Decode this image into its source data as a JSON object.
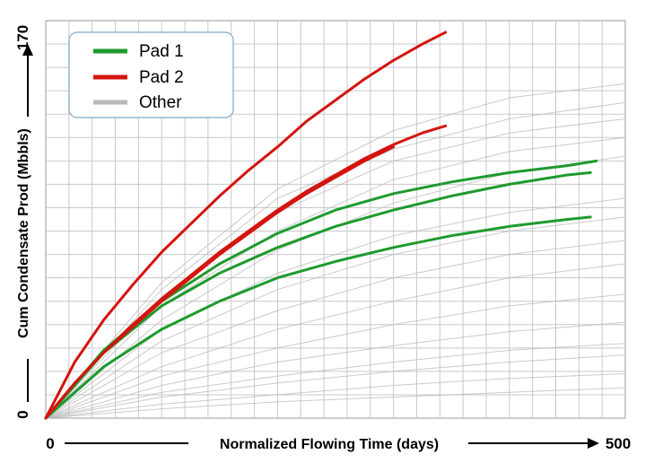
{
  "chart_data": {
    "type": "line",
    "xlabel": "Normalized Flowing Time (days)",
    "ylabel": "Cum Condensate Prod (Mbbls)",
    "xlim": [
      0,
      500
    ],
    "ylim": [
      0,
      170
    ],
    "x_tick_labels": [
      "0",
      "500"
    ],
    "y_tick_labels": [
      "0",
      "170"
    ],
    "grid": true,
    "legend_position": "top-left",
    "legend": [
      {
        "label": "Pad 1",
        "color": "#1e9a2e"
      },
      {
        "label": "Pad 2",
        "color": "#d4140f"
      },
      {
        "label": "Other",
        "color": "#b8b8b8"
      }
    ],
    "series": [
      {
        "name": "Pad 2",
        "group": "Pad 2",
        "x": [
          0,
          25,
          50,
          75,
          100,
          125,
          150,
          175,
          200,
          225,
          250,
          275,
          300,
          325,
          345
        ],
        "y": [
          0,
          24,
          42,
          57,
          71,
          83,
          95,
          106,
          116,
          127,
          136,
          145,
          153,
          160,
          165
        ]
      },
      {
        "name": "Pad 2",
        "group": "Pad 2",
        "x": [
          0,
          25,
          50,
          75,
          100,
          125,
          150,
          175,
          200,
          225,
          250,
          275,
          300,
          325,
          345
        ],
        "y": [
          0,
          15,
          28,
          40,
          51,
          61,
          71,
          80,
          89,
          97,
          104,
          111,
          117,
          122,
          125
        ]
      },
      {
        "name": "Pad 2",
        "group": "Pad 2",
        "x": [
          0,
          25,
          50,
          75,
          100,
          125,
          150,
          175,
          200,
          225,
          250,
          275,
          300
        ],
        "y": [
          0,
          15,
          28,
          39,
          50,
          60,
          70,
          79,
          88,
          96,
          103,
          110,
          116
        ]
      },
      {
        "name": "Pad 1",
        "group": "Pad 1",
        "x": [
          0,
          50,
          100,
          150,
          200,
          250,
          300,
          350,
          400,
          450,
          475
        ],
        "y": [
          0,
          29,
          50,
          66,
          79,
          89,
          96,
          101,
          105,
          108,
          110
        ]
      },
      {
        "name": "Pad 1",
        "group": "Pad 1",
        "x": [
          0,
          50,
          100,
          150,
          200,
          250,
          300,
          350,
          400,
          450,
          470
        ],
        "y": [
          0,
          28,
          48,
          62,
          73,
          82,
          89,
          95,
          100,
          104,
          105
        ]
      },
      {
        "name": "Pad 1",
        "group": "Pad 1",
        "x": [
          0,
          50,
          100,
          150,
          200,
          250,
          300,
          350,
          400,
          450,
          470
        ],
        "y": [
          0,
          22,
          38,
          50,
          60,
          67,
          73,
          78,
          82,
          85,
          86
        ]
      },
      {
        "name": "Other",
        "group": "Other",
        "x": [
          0,
          100,
          200,
          300,
          400,
          500
        ],
        "y": [
          0,
          58,
          98,
          123,
          137,
          143
        ]
      },
      {
        "name": "Other",
        "group": "Other",
        "x": [
          0,
          100,
          200,
          300,
          400,
          500
        ],
        "y": [
          0,
          55,
          94,
          115,
          128,
          135
        ]
      },
      {
        "name": "Other",
        "group": "Other",
        "x": [
          0,
          100,
          200,
          300,
          400,
          500
        ],
        "y": [
          0,
          52,
          88,
          110,
          122,
          128
        ]
      },
      {
        "name": "Other",
        "group": "Other",
        "x": [
          0,
          100,
          200,
          300,
          400,
          500
        ],
        "y": [
          0,
          48,
          80,
          102,
          114,
          120
        ]
      },
      {
        "name": "Other",
        "group": "Other",
        "x": [
          0,
          100,
          200,
          300,
          400,
          500
        ],
        "y": [
          0,
          42,
          72,
          92,
          105,
          112
        ]
      },
      {
        "name": "Other",
        "group": "Other",
        "x": [
          0,
          100,
          200,
          300,
          400,
          500
        ],
        "y": [
          0,
          38,
          62,
          78,
          88,
          94
        ]
      },
      {
        "name": "Other",
        "group": "Other",
        "x": [
          0,
          100,
          200,
          300,
          400,
          500
        ],
        "y": [
          0,
          33,
          55,
          70,
          80,
          86
        ]
      },
      {
        "name": "Other",
        "group": "Other",
        "x": [
          0,
          100,
          200,
          300,
          400,
          500
        ],
        "y": [
          0,
          28,
          46,
          60,
          70,
          76
        ]
      },
      {
        "name": "Other",
        "group": "Other",
        "x": [
          0,
          100,
          200,
          300,
          400,
          500
        ],
        "y": [
          0,
          22,
          38,
          50,
          60,
          66
        ]
      },
      {
        "name": "Other",
        "group": "Other",
        "x": [
          0,
          100,
          200,
          300,
          400,
          500
        ],
        "y": [
          0,
          18,
          30,
          40,
          48,
          53
        ]
      },
      {
        "name": "Other",
        "group": "Other",
        "x": [
          0,
          100,
          200,
          300,
          400,
          500
        ],
        "y": [
          0,
          14,
          24,
          31,
          37,
          41
        ]
      },
      {
        "name": "Other",
        "group": "Other",
        "x": [
          0,
          100,
          200,
          300,
          400,
          500
        ],
        "y": [
          0,
          11,
          18,
          24,
          29,
          32
        ]
      },
      {
        "name": "Other",
        "group": "Other",
        "x": [
          0,
          100,
          200,
          300,
          400,
          500
        ],
        "y": [
          0,
          9,
          15,
          20,
          24,
          27
        ]
      },
      {
        "name": "Other",
        "group": "Other",
        "x": [
          0,
          100,
          200,
          300,
          400,
          500
        ],
        "y": [
          0,
          6,
          10,
          14,
          17,
          19
        ]
      },
      {
        "name": "Other",
        "group": "Other",
        "x": [
          0,
          100,
          200,
          300,
          400,
          500
        ],
        "y": [
          0,
          4,
          7,
          9,
          11,
          13
        ]
      }
    ]
  }
}
